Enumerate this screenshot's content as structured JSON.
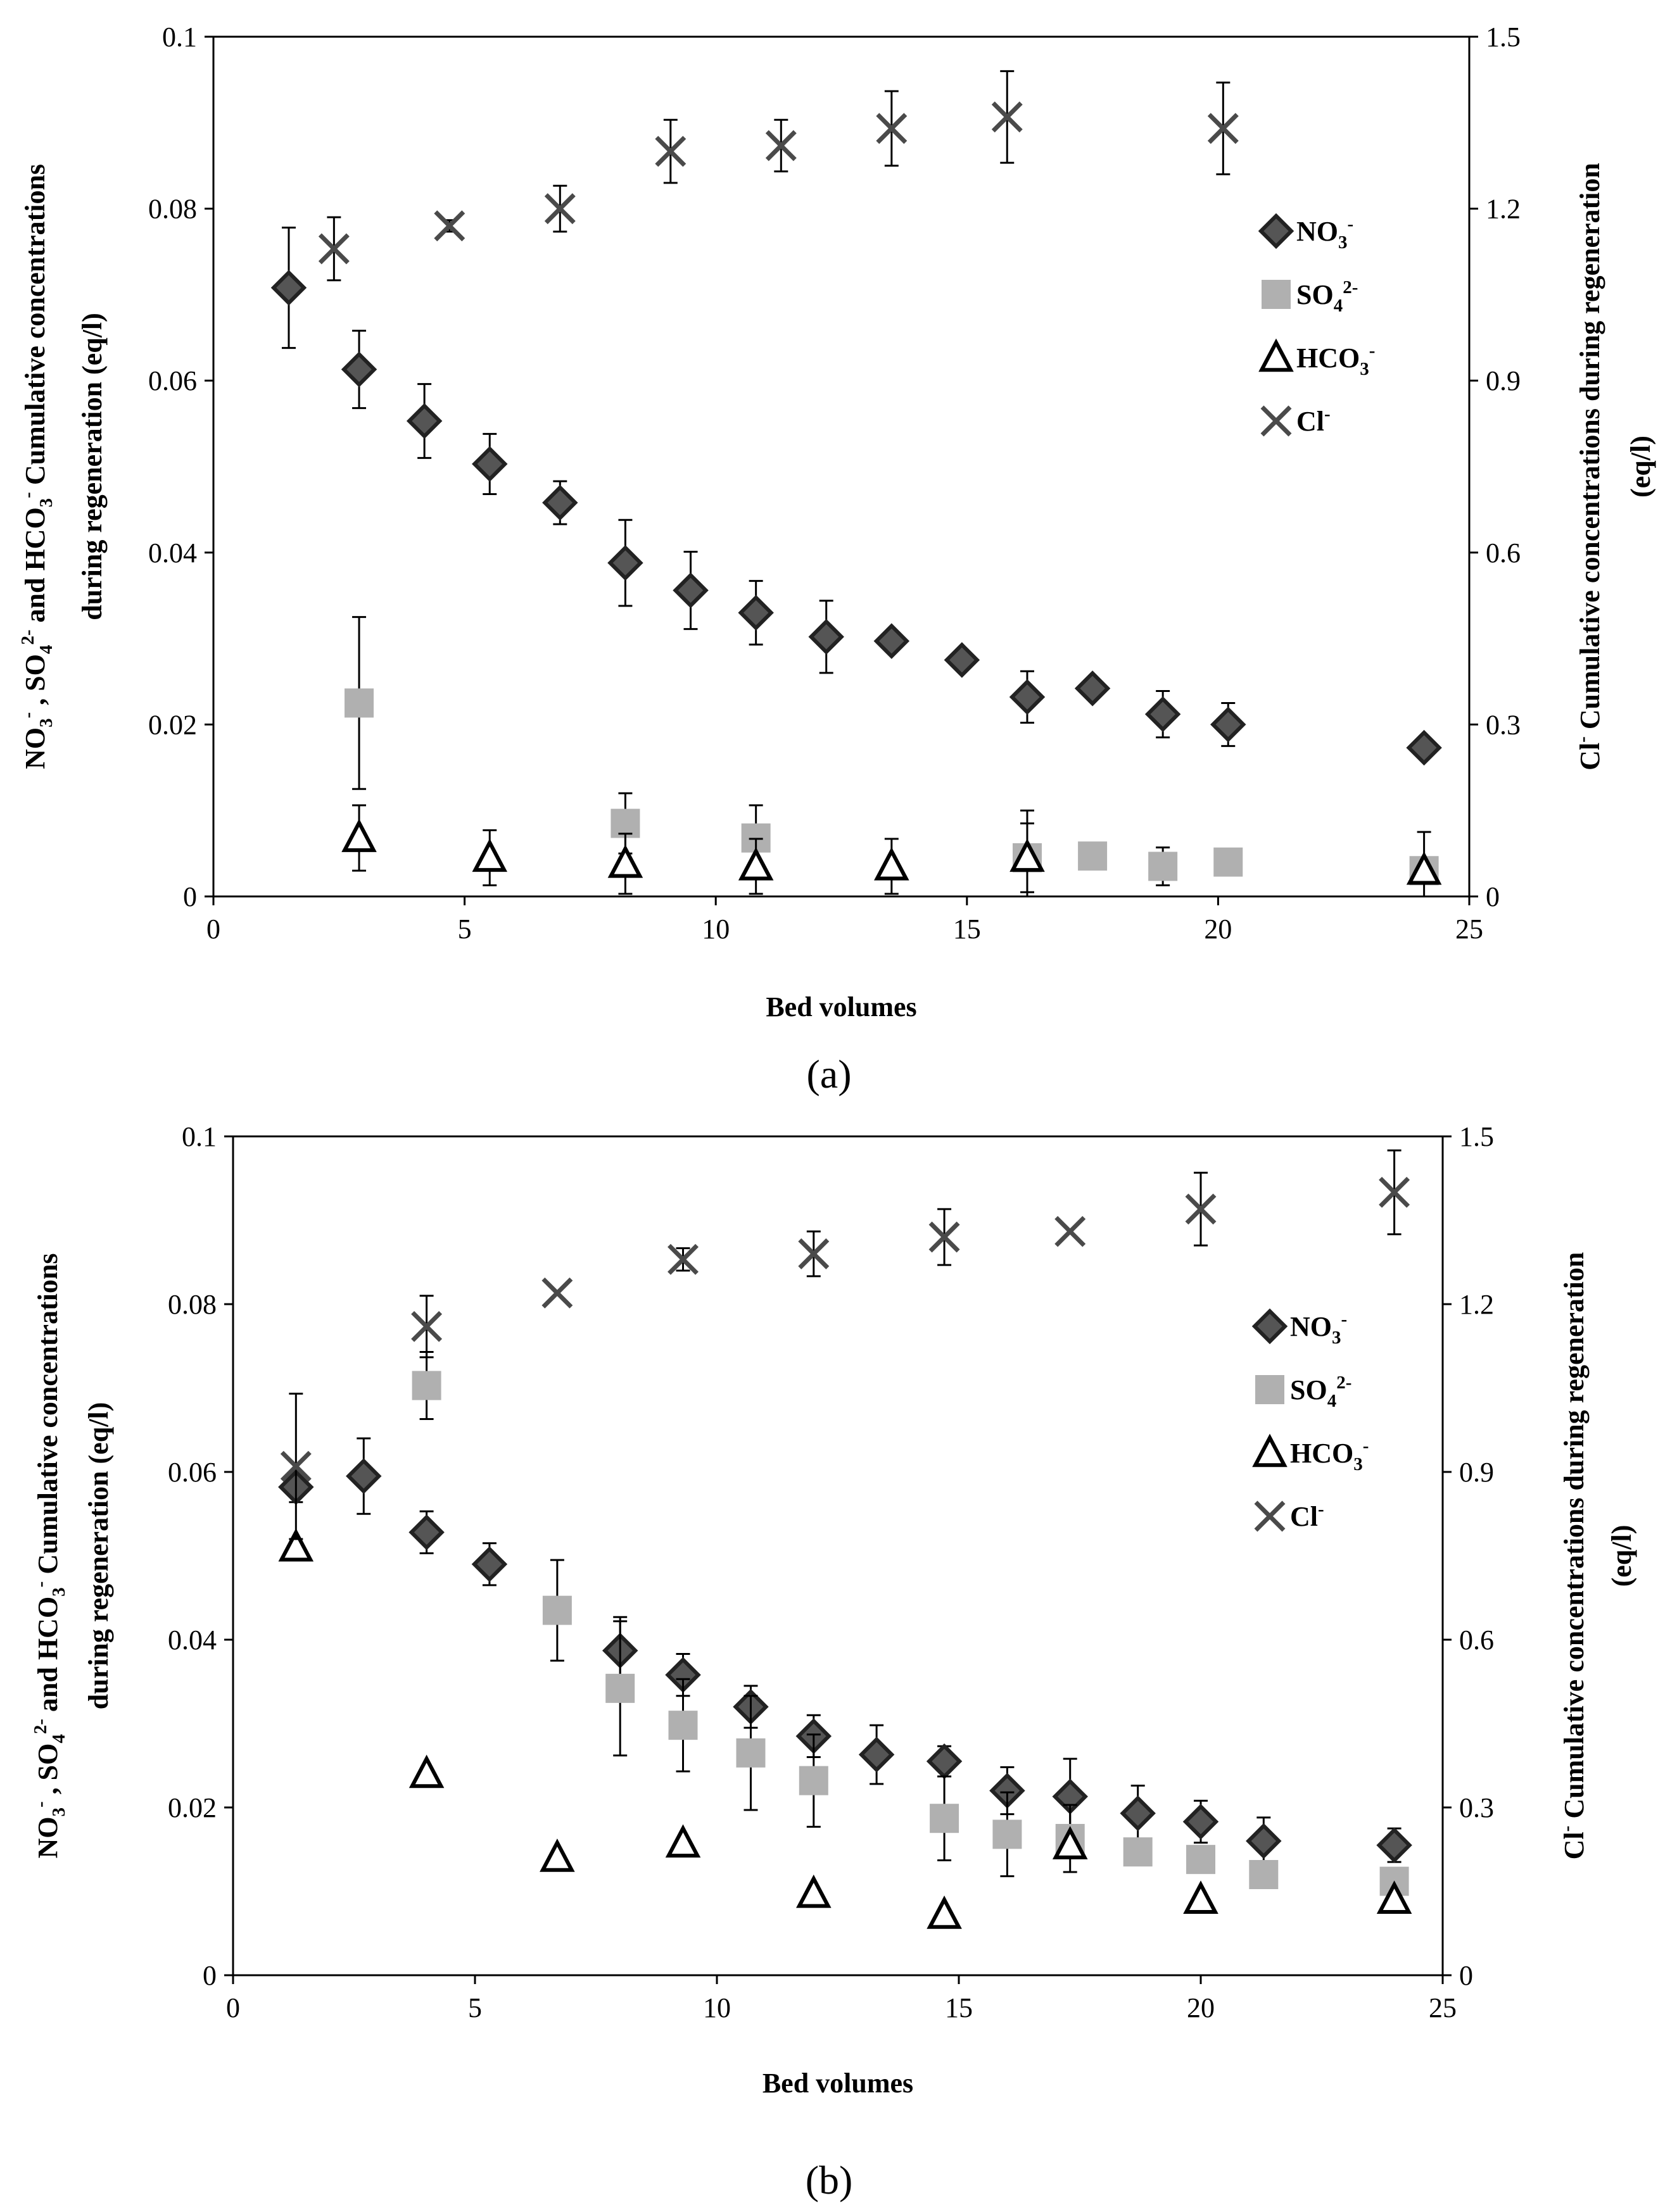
{
  "chart_data": [
    {
      "type": "scatter",
      "panel_label": "(a)",
      "xlabel": "Bed volumes",
      "ylabel_left": {
        "line1": {
          "parts": [
            {
              "t": "NO"
            },
            {
              "t": "3",
              "sub": true
            },
            {
              "t": "-",
              "sup": true
            },
            {
              "t": " , SO"
            },
            {
              "t": "4",
              "sub": true
            },
            {
              "t": "2-",
              "sup": true
            },
            {
              "t": " and HCO"
            },
            {
              "t": "3",
              "sub": true
            },
            {
              "t": "-",
              "sup": true
            },
            {
              "t": " Cumulative concentrations"
            }
          ]
        },
        "line2": "during regeneration (eq/l)"
      },
      "ylabel_right": {
        "line1": {
          "parts": [
            {
              "t": "Cl"
            },
            {
              "t": "-",
              "sup": true
            },
            {
              "t": " Cumulative concentrations during regeneration"
            }
          ]
        },
        "line2": "(eq/l)"
      },
      "xlim": [
        0,
        25
      ],
      "ylim_left": [
        0,
        0.1
      ],
      "ylim_right": [
        0,
        1.5
      ],
      "xticks": [
        "0",
        "5",
        "10",
        "15",
        "20",
        "25"
      ],
      "yticks_left": [
        "0",
        "0.02",
        "0.04",
        "0.06",
        "0.08",
        "0.1"
      ],
      "yticks_right": [
        "0",
        "0.3",
        "0.6",
        "0.9",
        "1.2",
        "1.5"
      ],
      "legend_position": "top-right",
      "series": [
        {
          "name": "NO3-",
          "legend_parts": [
            {
              "t": "NO"
            },
            {
              "t": "3",
              "sub": true
            },
            {
              "t": "-",
              "sup": true
            }
          ],
          "marker": "diamond",
          "color": "#555555",
          "axis": "left",
          "points": [
            {
              "x": 1.5,
              "y": 0.0708,
              "err": 0.007
            },
            {
              "x": 2.9,
              "y": 0.0613,
              "err": 0.0045
            },
            {
              "x": 4.2,
              "y": 0.0553,
              "err": 0.0043
            },
            {
              "x": 5.5,
              "y": 0.0503,
              "err": 0.0035
            },
            {
              "x": 6.9,
              "y": 0.0458,
              "err": 0.0025
            },
            {
              "x": 8.2,
              "y": 0.0388,
              "err": 0.005
            },
            {
              "x": 9.5,
              "y": 0.0356,
              "err": 0.0045
            },
            {
              "x": 10.8,
              "y": 0.033,
              "err": 0.0037
            },
            {
              "x": 12.2,
              "y": 0.0302,
              "err": 0.0042
            },
            {
              "x": 13.5,
              "y": 0.0297,
              "err": 0
            },
            {
              "x": 14.9,
              "y": 0.0275,
              "err": 0
            },
            {
              "x": 16.2,
              "y": 0.0232,
              "err": 0.003
            },
            {
              "x": 17.5,
              "y": 0.0242,
              "err": 0
            },
            {
              "x": 18.9,
              "y": 0.0212,
              "err": 0.0027
            },
            {
              "x": 20.2,
              "y": 0.02,
              "err": 0.0025
            },
            {
              "x": 24.1,
              "y": 0.0173,
              "err": 0
            }
          ]
        },
        {
          "name": "SO42-",
          "legend_parts": [
            {
              "t": "SO"
            },
            {
              "t": "4",
              "sub": true
            },
            {
              "t": "2-",
              "sup": true
            }
          ],
          "marker": "square",
          "color": "#b0b0b0",
          "axis": "left",
          "points": [
            {
              "x": 2.9,
              "y": 0.0225,
              "err": 0.01
            },
            {
              "x": 8.2,
              "y": 0.0085,
              "err": 0.0035
            },
            {
              "x": 10.8,
              "y": 0.0068,
              "err": 0.0038
            },
            {
              "x": 16.2,
              "y": 0.0045,
              "err": 0.004
            },
            {
              "x": 17.5,
              "y": 0.0047,
              "err": 0
            },
            {
              "x": 18.9,
              "y": 0.0035,
              "err": 0.0022
            },
            {
              "x": 20.2,
              "y": 0.004,
              "err": 0
            },
            {
              "x": 24.1,
              "y": 0.003,
              "err": 0
            }
          ]
        },
        {
          "name": "HCO3-",
          "legend_parts": [
            {
              "t": "HCO"
            },
            {
              "t": "3",
              "sub": true
            },
            {
              "t": "-",
              "sup": true
            }
          ],
          "marker": "triangle",
          "color": "#000000",
          "axis": "left",
          "points": [
            {
              "x": 2.9,
              "y": 0.0068,
              "err": 0.0038
            },
            {
              "x": 5.5,
              "y": 0.0045,
              "err": 0.0032
            },
            {
              "x": 8.2,
              "y": 0.0038,
              "err": 0.0035
            },
            {
              "x": 10.8,
              "y": 0.0035,
              "err": 0.0032
            },
            {
              "x": 13.5,
              "y": 0.0035,
              "err": 0.0032
            },
            {
              "x": 16.2,
              "y": 0.0045,
              "err": 0.0055
            },
            {
              "x": 24.1,
              "y": 0.003,
              "err": 0.0045
            }
          ]
        },
        {
          "name": "Cl-",
          "legend_parts": [
            {
              "t": "Cl"
            },
            {
              "t": "-",
              "sup": true
            }
          ],
          "marker": "x",
          "color": "#4a4a4a",
          "axis": "right",
          "points": [
            {
              "x": 2.4,
              "y": 1.13,
              "err": 0.055
            },
            {
              "x": 4.7,
              "y": 1.17,
              "err": 0.01
            },
            {
              "x": 6.9,
              "y": 1.2,
              "err": 0.04
            },
            {
              "x": 9.1,
              "y": 1.3,
              "err": 0.055
            },
            {
              "x": 11.3,
              "y": 1.31,
              "err": 0.045
            },
            {
              "x": 13.5,
              "y": 1.34,
              "err": 0.065
            },
            {
              "x": 15.8,
              "y": 1.36,
              "err": 0.08
            },
            {
              "x": 20.1,
              "y": 1.34,
              "err": 0.08
            }
          ]
        }
      ]
    },
    {
      "type": "scatter",
      "panel_label": "(b)",
      "xlabel": "Bed volumes",
      "ylabel_left": {
        "line1": {
          "parts": [
            {
              "t": "NO"
            },
            {
              "t": "3",
              "sub": true
            },
            {
              "t": "-",
              "sup": true
            },
            {
              "t": " , SO"
            },
            {
              "t": "4",
              "sub": true
            },
            {
              "t": "2-",
              "sup": true
            },
            {
              "t": " and HCO"
            },
            {
              "t": "3",
              "sub": true
            },
            {
              "t": "-",
              "sup": true
            },
            {
              "t": " Cumulative concentrations"
            }
          ]
        },
        "line2": "during regeneration (eq/l)"
      },
      "ylabel_right": {
        "line1": {
          "parts": [
            {
              "t": "Cl"
            },
            {
              "t": "-",
              "sup": true
            },
            {
              "t": " Cumulative concentrations during regeneration"
            }
          ]
        },
        "line2": "(eq/l)"
      },
      "xlim": [
        0,
        25
      ],
      "ylim_left": [
        0,
        0.1
      ],
      "ylim_right": [
        0,
        1.5
      ],
      "xticks": [
        "0",
        "5",
        "10",
        "15",
        "20",
        "25"
      ],
      "yticks_left": [
        "0",
        "0.02",
        "0.04",
        "0.06",
        "0.08",
        "0.1"
      ],
      "yticks_right": [
        "0",
        "0.3",
        "0.6",
        "0.9",
        "1.2",
        "1.5"
      ],
      "legend_position": "top-right",
      "series": [
        {
          "name": "NO3-",
          "legend_parts": [
            {
              "t": "NO"
            },
            {
              "t": "3",
              "sub": true
            },
            {
              "t": "-",
              "sup": true
            }
          ],
          "marker": "diamond",
          "color": "#555555",
          "axis": "left",
          "points": [
            {
              "x": 1.3,
              "y": 0.0582,
              "err": 0.0018
            },
            {
              "x": 2.7,
              "y": 0.0595,
              "err": 0.0045
            },
            {
              "x": 4.0,
              "y": 0.0528,
              "err": 0.0025
            },
            {
              "x": 5.3,
              "y": 0.049,
              "err": 0.0025
            },
            {
              "x": 8.0,
              "y": 0.0387,
              "err": 0.004
            },
            {
              "x": 9.3,
              "y": 0.0358,
              "err": 0.0025
            },
            {
              "x": 10.7,
              "y": 0.032,
              "err": 0.0025
            },
            {
              "x": 12.0,
              "y": 0.0285,
              "err": 0.0025
            },
            {
              "x": 13.3,
              "y": 0.0263,
              "err": 0.0035
            },
            {
              "x": 14.7,
              "y": 0.0255,
              "err": 0.0018
            },
            {
              "x": 16.0,
              "y": 0.022,
              "err": 0.0028
            },
            {
              "x": 17.3,
              "y": 0.0213,
              "err": 0.0045
            },
            {
              "x": 18.7,
              "y": 0.0193,
              "err": 0.0033
            },
            {
              "x": 20.0,
              "y": 0.0183,
              "err": 0.0025
            },
            {
              "x": 21.3,
              "y": 0.016,
              "err": 0.0028
            },
            {
              "x": 24.0,
              "y": 0.0155,
              "err": 0.002
            }
          ]
        },
        {
          "name": "SO42-",
          "legend_parts": [
            {
              "t": "SO"
            },
            {
              "t": "4",
              "sub": true
            },
            {
              "t": "2-",
              "sup": true
            }
          ],
          "marker": "square",
          "color": "#b0b0b0",
          "axis": "left",
          "points": [
            {
              "x": 4.0,
              "y": 0.0703,
              "err": 0.004
            },
            {
              "x": 6.7,
              "y": 0.0435,
              "err": 0.006
            },
            {
              "x": 8.0,
              "y": 0.0342,
              "err": 0.008
            },
            {
              "x": 9.3,
              "y": 0.0298,
              "err": 0.0055
            },
            {
              "x": 10.7,
              "y": 0.0265,
              "err": 0.0068
            },
            {
              "x": 12.0,
              "y": 0.0232,
              "err": 0.0055
            },
            {
              "x": 14.7,
              "y": 0.0187,
              "err": 0.005
            },
            {
              "x": 16.0,
              "y": 0.0168,
              "err": 0.005
            },
            {
              "x": 17.3,
              "y": 0.0163,
              "err": 0.004
            },
            {
              "x": 18.7,
              "y": 0.0147,
              "err": 0
            },
            {
              "x": 20.0,
              "y": 0.0138,
              "err": 0
            },
            {
              "x": 21.3,
              "y": 0.012,
              "err": 0
            },
            {
              "x": 24.0,
              "y": 0.0112,
              "err": 0
            }
          ]
        },
        {
          "name": "HCO3-",
          "legend_parts": [
            {
              "t": "HCO"
            },
            {
              "t": "3",
              "sub": true
            },
            {
              "t": "-",
              "sup": true
            }
          ],
          "marker": "triangle",
          "color": "#000000",
          "axis": "left",
          "points": [
            {
              "x": 1.3,
              "y": 0.051,
              "err": 0
            },
            {
              "x": 4.0,
              "y": 0.024,
              "err": 0
            },
            {
              "x": 6.7,
              "y": 0.014,
              "err": 0
            },
            {
              "x": 9.3,
              "y": 0.0157,
              "err": 0
            },
            {
              "x": 12.0,
              "y": 0.0097,
              "err": 0
            },
            {
              "x": 14.7,
              "y": 0.0072,
              "err": 0
            },
            {
              "x": 17.3,
              "y": 0.0155,
              "err": 0
            },
            {
              "x": 20.0,
              "y": 0.009,
              "err": 0
            },
            {
              "x": 24.0,
              "y": 0.009,
              "err": 0
            }
          ]
        },
        {
          "name": "Cl-",
          "legend_parts": [
            {
              "t": "Cl"
            },
            {
              "t": "-",
              "sup": true
            }
          ],
          "marker": "x",
          "color": "#4a4a4a",
          "axis": "right",
          "points": [
            {
              "x": 1.3,
              "y": 0.91,
              "err": 0.13
            },
            {
              "x": 4.0,
              "y": 1.16,
              "err": 0.055
            },
            {
              "x": 6.7,
              "y": 1.22,
              "err": 0
            },
            {
              "x": 9.3,
              "y": 1.28,
              "err": 0.02
            },
            {
              "x": 12.0,
              "y": 1.29,
              "err": 0.04
            },
            {
              "x": 14.7,
              "y": 1.32,
              "err": 0.05
            },
            {
              "x": 17.3,
              "y": 1.33,
              "err": 0
            },
            {
              "x": 20.0,
              "y": 1.37,
              "err": 0.065
            },
            {
              "x": 24.0,
              "y": 1.4,
              "err": 0.075
            }
          ]
        }
      ]
    }
  ]
}
